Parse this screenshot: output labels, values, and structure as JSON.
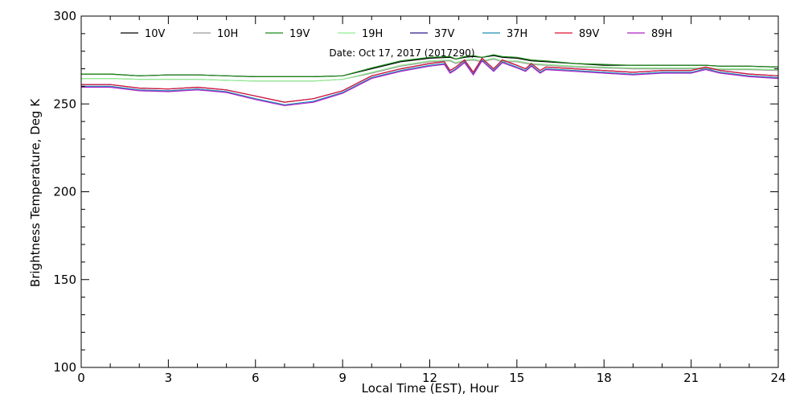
{
  "chart_data": {
    "type": "line",
    "annotation": "Date: Oct 17, 2017 (2017290)",
    "xlabel": "Local Time (EST), Hour",
    "ylabel": "Brightness Temperature, Deg  K",
    "xlim": [
      0,
      24
    ],
    "ylim": [
      100,
      300
    ],
    "xticks": [
      0,
      3,
      6,
      9,
      12,
      15,
      18,
      21,
      24
    ],
    "yticks": [
      100,
      150,
      200,
      250,
      300
    ],
    "legend_position": "top",
    "grid": false,
    "series": [
      {
        "name": "10V",
        "color": "#000000",
        "x": [
          0,
          1,
          2,
          3,
          4,
          5,
          6,
          7,
          8,
          9,
          10,
          11,
          12,
          12.7,
          12.9,
          13.2,
          13.5,
          13.8,
          14.2,
          14.5,
          15,
          15.5,
          16,
          17,
          18,
          19,
          20,
          21,
          21.5,
          22,
          23,
          24
        ],
        "y": [
          267,
          267,
          266,
          266.5,
          266.5,
          266,
          265.5,
          265.5,
          265.5,
          266,
          270,
          274,
          276,
          276.5,
          275.5,
          276.5,
          277,
          276.5,
          277.5,
          276.5,
          276,
          274.5,
          274,
          273,
          272,
          272,
          272,
          272,
          272,
          271.5,
          271.5,
          271
        ]
      },
      {
        "name": "10H",
        "color": "#9a9a9a",
        "x": [
          0,
          1,
          2,
          3,
          4,
          5,
          6,
          7,
          8,
          9,
          10,
          11,
          12,
          12.7,
          12.9,
          13.2,
          13.5,
          13.8,
          14.2,
          14.5,
          15,
          15.5,
          16,
          17,
          18,
          19,
          20,
          21,
          21.5,
          22,
          23,
          24
        ],
        "y": [
          264.5,
          264.5,
          264,
          264,
          264,
          263.5,
          263,
          263,
          263,
          264,
          267.5,
          271.5,
          274,
          274.5,
          273,
          274.5,
          275,
          274,
          275.5,
          274,
          274,
          272.5,
          272,
          271,
          270.5,
          270,
          270,
          270,
          270,
          269.5,
          269.5,
          269
        ]
      },
      {
        "name": "19V",
        "color": "#1a8a1a",
        "x": [
          0,
          1,
          2,
          3,
          4,
          5,
          6,
          7,
          8,
          9,
          10,
          11,
          12,
          12.7,
          12.9,
          13.2,
          13.5,
          13.8,
          14.2,
          14.5,
          15,
          15.5,
          16,
          17,
          18,
          19,
          20,
          21,
          21.5,
          22,
          23,
          24
        ],
        "y": [
          267,
          267,
          266,
          266.5,
          266.5,
          266,
          265.5,
          265.5,
          265.5,
          266,
          270.5,
          274.5,
          276.5,
          277,
          275.5,
          277,
          277.5,
          276.5,
          278,
          277,
          276.5,
          275,
          274.5,
          273,
          272.5,
          272,
          272,
          272,
          272,
          271.5,
          271.5,
          271
        ]
      },
      {
        "name": "19H",
        "color": "#90ee90",
        "x": [
          0,
          1,
          2,
          3,
          4,
          5,
          6,
          7,
          8,
          9,
          10,
          11,
          12,
          12.7,
          12.9,
          13.2,
          13.5,
          13.8,
          14.2,
          14.5,
          15,
          15.5,
          16,
          17,
          18,
          19,
          20,
          21,
          21.5,
          22,
          23,
          24
        ],
        "y": [
          264.5,
          264.5,
          264,
          264,
          264,
          263.5,
          263,
          263,
          263,
          264,
          268,
          272,
          274.5,
          275,
          273.5,
          275,
          275.5,
          274.5,
          276,
          274.5,
          274.5,
          273,
          272.5,
          271.5,
          271,
          270.5,
          270.5,
          270.5,
          270.5,
          270,
          270,
          269.5
        ]
      },
      {
        "name": "37V",
        "color": "#2a1a8a",
        "x": [
          0,
          1,
          2,
          3,
          4,
          5,
          6,
          7,
          8,
          9,
          10,
          11,
          12,
          12.5,
          12.7,
          12.9,
          13.2,
          13.5,
          13.8,
          14.2,
          14.5,
          15,
          15.3,
          15.5,
          15.8,
          16,
          17,
          18,
          19,
          20,
          21,
          21.5,
          22,
          23,
          24
        ],
        "y": [
          261,
          261,
          259,
          258.5,
          259.5,
          258,
          254.5,
          251,
          253,
          257.5,
          266,
          270,
          273,
          274,
          269,
          271,
          275,
          268,
          276,
          270,
          275,
          272,
          270,
          273,
          269,
          271,
          270,
          269,
          268,
          269,
          269,
          271,
          269,
          267,
          266
        ]
      },
      {
        "name": "37H",
        "color": "#1a8fb5",
        "x": [
          0,
          1,
          2,
          3,
          4,
          5,
          6,
          7,
          8,
          9,
          10,
          11,
          12,
          12.5,
          12.7,
          12.9,
          13.2,
          13.5,
          13.8,
          14.2,
          14.5,
          15,
          15.3,
          15.5,
          15.8,
          16,
          17,
          18,
          19,
          20,
          21,
          21.5,
          22,
          23,
          24
        ],
        "y": [
          260,
          260,
          258,
          257.5,
          258.5,
          257,
          253,
          249.5,
          251.5,
          256.5,
          265,
          269,
          272,
          273,
          268,
          270,
          274,
          267,
          275,
          269,
          274,
          271,
          269,
          272,
          268,
          270,
          269,
          268,
          267,
          268,
          268,
          270,
          268,
          266,
          265
        ]
      },
      {
        "name": "89V",
        "color": "#dd1133",
        "x": [
          0,
          1,
          2,
          3,
          4,
          5,
          6,
          7,
          8,
          9,
          10,
          11,
          12,
          12.5,
          12.7,
          12.9,
          13.2,
          13.5,
          13.8,
          14.2,
          14.5,
          15,
          15.3,
          15.5,
          15.8,
          16,
          17,
          18,
          19,
          20,
          21,
          21.5,
          22,
          23,
          24
        ],
        "y": [
          261,
          261,
          259,
          258.5,
          259.5,
          258,
          254.5,
          251,
          253,
          257.5,
          266,
          270,
          273,
          274,
          269,
          271,
          275,
          268,
          276,
          270,
          275,
          272,
          270,
          273,
          269,
          271,
          270,
          269,
          268,
          269,
          269,
          271,
          269,
          267,
          266
        ]
      },
      {
        "name": "89H",
        "color": "#b020c8",
        "x": [
          0,
          1,
          2,
          3,
          4,
          5,
          6,
          7,
          8,
          9,
          10,
          11,
          12,
          12.5,
          12.7,
          12.9,
          13.2,
          13.5,
          13.8,
          14.2,
          14.5,
          15,
          15.3,
          15.5,
          15.8,
          16,
          17,
          18,
          19,
          20,
          21,
          21.5,
          22,
          23,
          24
        ],
        "y": [
          259.5,
          259.5,
          257.5,
          257,
          258,
          256.5,
          252.5,
          249,
          251,
          256,
          264.5,
          268.5,
          271.5,
          272.5,
          267.5,
          269.5,
          273.5,
          266.5,
          274.5,
          268.5,
          273.5,
          270.5,
          268.5,
          271.5,
          267.5,
          269.5,
          268.5,
          267.5,
          266.5,
          267.5,
          267.5,
          269.5,
          267.5,
          265.5,
          264.5
        ]
      }
    ]
  }
}
